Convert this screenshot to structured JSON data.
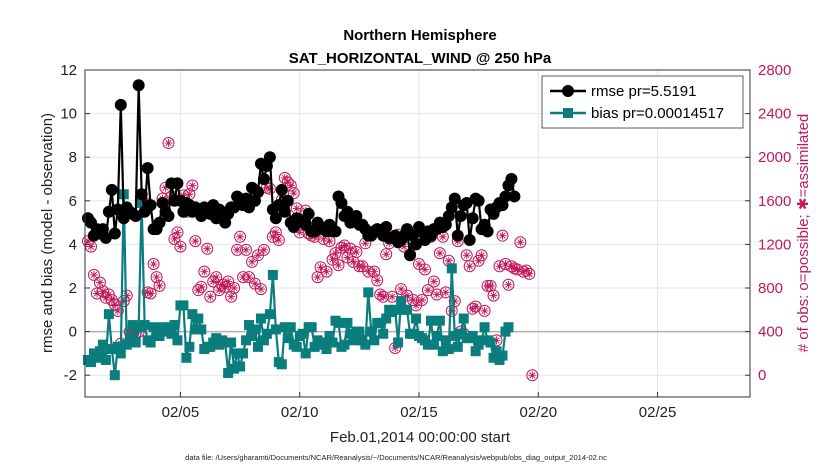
{
  "chart_data": {
    "type": "line",
    "title": "Northern Hemisphere",
    "subtitle": "SAT_HORIZONTAL_WIND @ 250 hPa",
    "xlabel": "Feb.01,2014 00:00:00 start",
    "ylabel": "rmse and bias (model - observation)",
    "ylabel_right": "# of obs: o=possible; ✱=assimilated",
    "footnote": "data file: /Users/gharamti/Documents/NCAR/Reanalysis/~/Documents/NCAR/Reanalysis/webpub/obs_diag_output_2014-02.nc",
    "xlim": [
      1.0,
      28.875
    ],
    "ylim": [
      -3,
      12
    ],
    "ylim_right": [
      -200,
      2800
    ],
    "x_ticks": [
      5,
      10,
      15,
      20,
      25
    ],
    "x_tick_labels": [
      "02/05",
      "02/10",
      "02/15",
      "02/20",
      "02/25"
    ],
    "y_ticks": [
      -2,
      0,
      2,
      4,
      6,
      8,
      10,
      12
    ],
    "y_tick_labels": [
      "-2",
      "0",
      "2",
      "4",
      "6",
      "8",
      "10",
      "12"
    ],
    "y_right_ticks": [
      0,
      400,
      800,
      1200,
      1600,
      2000,
      2400,
      2800
    ],
    "y_right_tick_labels": [
      "0",
      "400",
      "800",
      "1200",
      "1600",
      "2000",
      "2400",
      "2800"
    ],
    "grid": true,
    "zero_line": 0,
    "colors": {
      "rmse": "#000000",
      "bias": "#0a7d7d",
      "obs": "#c2185b",
      "zero": "#b0b0b0"
    },
    "x_step": 0.125,
    "x_start": 1.125,
    "legend_position": "top-right",
    "series": [
      {
        "name": "rmse pr=5.5191",
        "values": [
          5.2,
          5.0,
          4.4,
          4.7,
          4.5,
          4.7,
          4.3,
          5.5,
          6.5,
          4.5,
          5.6,
          10.4,
          5.2,
          5.7,
          5.5,
          5.4,
          5.3,
          11.3,
          6.3,
          5.5,
          7.5,
          5.8,
          4.7,
          4.7,
          5.0,
          5.9,
          5.5,
          5.3,
          6.8,
          6.0,
          6.8,
          6.0,
          5.5,
          5.9,
          5.8,
          5.5,
          5.7,
          5.6,
          5.3,
          5.7,
          5.6,
          5.4,
          5.8,
          5.2,
          5.6,
          5.5,
          5.0,
          5.4,
          5.7,
          5.7,
          6.2,
          6.0,
          5.8,
          6.1,
          5.7,
          6.6,
          6.0,
          6.4,
          7.7,
          7.0,
          7.6,
          8.0,
          5.6,
          5.2,
          5.8,
          6.5,
          5.5,
          6.0,
          5.0,
          4.8,
          5.2,
          5.1,
          5.0,
          4.9,
          5.4,
          4.6,
          4.6,
          5.0,
          4.8,
          4.7,
          4.6,
          4.9,
          4.6,
          4.6,
          6.2,
          5.9,
          5.3,
          5.5,
          5.0,
          5.2,
          5.3,
          4.9,
          4.9,
          4.7,
          4.4,
          4.4,
          4.6,
          4.7,
          4.6,
          4.4,
          4.8,
          4.3,
          4.3,
          4.4,
          4.1,
          4.2,
          4.4,
          4.7,
          3.5,
          4.4,
          4.0,
          4.8,
          4.6,
          4.2,
          4.6,
          4.4,
          4.7,
          4.7,
          5.0,
          4.8,
          4.9,
          5.3,
          5.7,
          6.1,
          4.4,
          5.3,
          5.8,
          5.9,
          4.2,
          5.2,
          6.1,
          6.0,
          4.7,
          4.9,
          4.6,
          5.6,
          5.4,
          5.7,
          5.9,
          5.8,
          6.2,
          6.7,
          7.0,
          6.2
        ],
        "color": "#000000"
      },
      {
        "name": "bias pr=0.00014517",
        "values": [
          -1.3,
          -1.4,
          -1.0,
          -1.2,
          -0.9,
          -0.6,
          -1.3,
          0.8,
          -0.8,
          -2.0,
          -0.7,
          -1.0,
          6.3,
          -0.6,
          -0.3,
          0.3,
          -0.5,
          0.2,
          5.9,
          0.3,
          -0.4,
          -0.5,
          0.2,
          -0.1,
          -0.2,
          0.2,
          0.0,
          0.2,
          -0.1,
          0.3,
          -0.4,
          1.2,
          1.2,
          -1.2,
          -0.7,
          0.8,
          0.1,
          0.6,
          0.1,
          -0.8,
          -0.7,
          -0.7,
          -0.5,
          -0.3,
          -0.6,
          -0.4,
          -0.5,
          -1.9,
          -0.5,
          -1.7,
          -1.0,
          -1.6,
          -1.0,
          -0.4,
          0.3,
          -0.2,
          0.1,
          -0.7,
          0.6,
          -0.4,
          -0.1,
          0.8,
          2.6,
          0.1,
          -1.4,
          -1.5,
          0.2,
          -0.3,
          0.2,
          -0.6,
          -0.7,
          -0.2,
          -0.1,
          -1.0,
          0.2,
          0.2,
          -0.7,
          -0.4,
          -0.6,
          -0.5,
          -0.8,
          -0.2,
          -0.5,
          0.5,
          0.4,
          -0.7,
          -0.6,
          0.4,
          -0.1,
          -0.4,
          0.0,
          0.0,
          -0.4,
          -0.6,
          1.8,
          0.0,
          -0.4,
          0.4,
          0.4,
          -0.1,
          0.6,
          1.0,
          0.9,
          1.0,
          -0.5,
          1.4,
          1.0,
          1.0,
          -0.1,
          -0.1,
          0.6,
          -0.2,
          -0.3,
          -0.4,
          -0.6,
          0.5,
          -0.6,
          -0.2,
          0.5,
          -0.9,
          -0.4,
          -0.8,
          2.9,
          -0.2,
          -0.7,
          -0.1,
          0.6,
          -0.3,
          -0.3,
          -0.2,
          -0.9,
          -0.6,
          -0.4,
          0.2,
          -0.4,
          -0.5,
          -1.2,
          -0.9,
          -1.3,
          -1.1,
          0.0,
          0.2
        ],
        "color": "#0a7d7d"
      },
      {
        "name": "obs possible/assimilated",
        "values": [
          1230,
          1180,
          920,
          750,
          850,
          770,
          710,
          740,
          690,
          650,
          590,
          290,
          680,
          730,
          400,
          390,
          390,
          400,
          1620,
          1580,
          760,
          750,
          1020,
          900,
          820,
          1620,
          1720,
          2130,
          1640,
          1250,
          1310,
          1180,
          1650,
          1500,
          1660,
          1740,
          1230,
          780,
          810,
          950,
          1160,
          720,
          860,
          900,
          780,
          830,
          810,
          860,
          720,
          800,
          1150,
          1270,
          900,
          1150,
          900,
          1040,
          840,
          1100,
          790,
          1150,
          1720,
          1710,
          1270,
          1310,
          1240,
          1610,
          1810,
          1770,
          1740,
          1670,
          1530,
          1310,
          1380,
          1510,
          1300,
          1280,
          1270,
          900,
          990,
          1250,
          950,
          1230,
          1060,
          1120,
          1010,
          1170,
          1190,
          1080,
          1160,
          1040,
          1130,
          1000,
          1000,
          1210,
          950,
          1300,
          950,
          870,
          740,
          720,
          1110,
          1210,
          720,
          250,
          1290,
          790,
          1180,
          730,
          1110,
          690,
          640,
          1020,
          690,
          970,
          780,
          1270,
          860,
          740,
          1120,
          1270,
          760,
          1050,
          590,
          680,
          1230,
          400,
          380,
          1100,
          1000,
          610,
          630,
          1050,
          1100,
          590,
          820,
          820,
          730,
          320,
          1000,
          1280,
          1020,
          830,
          1000,
          980,
          970,
          1220,
          950,
          960,
          930,
          0
        ]
      }
    ]
  }
}
